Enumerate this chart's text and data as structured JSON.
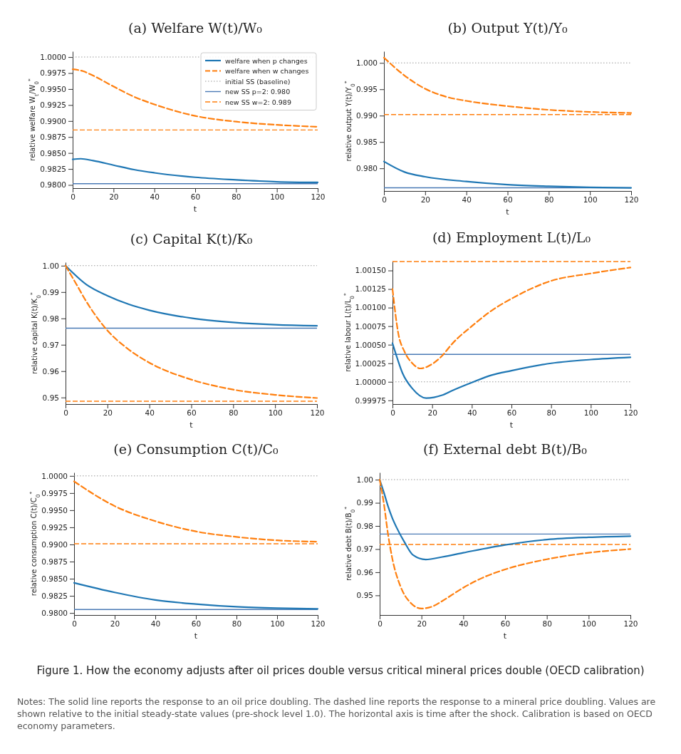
{
  "chart_data": [
    {
      "type": "line",
      "title": "(a) Welfare W(t)/W₀",
      "xlabel": "t",
      "ylabel": "relative welfare W$_{t}$/W$_{0}$$^{*}$",
      "xlim": [
        0,
        120
      ],
      "xticks": [
        0,
        20,
        40,
        60,
        80,
        100,
        120
      ],
      "ylim": [
        0.9795,
        1.0009
      ],
      "yticks": [
        {
          "value": 0.98,
          "label": "0.9800"
        },
        {
          "value": 0.9825,
          "label": "0.9825"
        },
        {
          "value": 0.985,
          "label": "0.9850"
        },
        {
          "value": 0.9875,
          "label": "0.9875"
        },
        {
          "value": 0.99,
          "label": "0.9900"
        },
        {
          "value": 0.9925,
          "label": "0.9925"
        },
        {
          "value": 0.995,
          "label": "0.9950"
        },
        {
          "value": 0.9975,
          "label": "0.9975"
        },
        {
          "value": 1,
          "label": "1.0000"
        }
      ],
      "legend": "top right",
      "series": [
        {
          "name": "welfare when p changes",
          "color": "#1f77b4",
          "line_style": "solid",
          "x": [
            0,
            4,
            10,
            20,
            30,
            40,
            60,
            80,
            100,
            120
          ],
          "values": [
            0.984,
            0.9841,
            0.9838,
            0.9831,
            0.9824,
            0.9819,
            0.9812,
            0.9808,
            0.9805,
            0.9804
          ]
        },
        {
          "name": "welfare when w changes",
          "color": "#ff7f0e",
          "line_style": "dashed",
          "x": [
            0,
            5,
            10,
            20,
            30,
            40,
            60,
            80,
            100,
            120
          ],
          "values": [
            0.9981,
            0.9978,
            0.9971,
            0.9954,
            0.9938,
            0.9926,
            0.9908,
            0.9899,
            0.9894,
            0.9891
          ]
        }
      ],
      "ref_lines": [
        {
          "axis": "y",
          "value": 1,
          "label": "initial SS (baseline)",
          "color": "#999999",
          "line_style": "dotted"
        },
        {
          "axis": "y",
          "value": 0.9802,
          "label": "new SS p=2: 0.980",
          "color": "#4a7ab5",
          "line_style": "solid"
        },
        {
          "axis": "y",
          "value": 0.9886,
          "label": "new SS w=2: 0.989",
          "color": "#ff7f0e",
          "line_style": "dashed"
        }
      ]
    },
    {
      "type": "line",
      "title": "(b) Output Y(t)/Y₀",
      "xlabel": "t",
      "ylabel": "relative output Y(t)/Y$_{0}$$^{*}$",
      "xlim": [
        0,
        120
      ],
      "xticks": [
        0,
        20,
        40,
        60,
        80,
        100,
        120
      ],
      "ylim": [
        0.9757,
        1.0022
      ],
      "yticks": [
        {
          "value": 0.98,
          "label": "0.980"
        },
        {
          "value": 0.985,
          "label": "0.985"
        },
        {
          "value": 0.99,
          "label": "0.990"
        },
        {
          "value": 0.995,
          "label": "0.995"
        },
        {
          "value": 1,
          "label": "1.000"
        }
      ],
      "series": [
        {
          "color": "#1f77b4",
          "line_style": "solid",
          "x": [
            0,
            10,
            20,
            40,
            60,
            80,
            100,
            120
          ],
          "values": [
            0.9813,
            0.9793,
            0.9784,
            0.9775,
            0.9769,
            0.9766,
            0.9764,
            0.9763
          ]
        },
        {
          "color": "#ff7f0e",
          "line_style": "dashed",
          "x": [
            0,
            10,
            20,
            30,
            40,
            60,
            80,
            100,
            120
          ],
          "values": [
            1.001,
            0.9976,
            0.9951,
            0.9936,
            0.9928,
            0.9918,
            0.9911,
            0.9907,
            0.9905
          ]
        }
      ],
      "ref_lines": [
        {
          "axis": "y",
          "value": 1,
          "color": "#999999",
          "line_style": "dotted"
        },
        {
          "axis": "y",
          "value": 0.9763,
          "color": "#4a7ab5",
          "line_style": "solid"
        },
        {
          "axis": "y",
          "value": 0.9902,
          "color": "#ff7f0e",
          "line_style": "dashed"
        }
      ]
    },
    {
      "type": "line",
      "title": "(c) Capital K(t)/K₀",
      "xlabel": "t",
      "ylabel": "relative capital K(t)/K$_{0}$$^{*}$",
      "xlim": [
        0,
        120
      ],
      "xticks": [
        0,
        20,
        40,
        60,
        80,
        100,
        120
      ],
      "ylim": [
        0.9475,
        1.0013
      ],
      "yticks": [
        0.95,
        0.96,
        0.97,
        0.98,
        0.99,
        {
          "value": 1,
          "label": "1.00"
        }
      ],
      "series": [
        {
          "color": "#1f77b4",
          "line_style": "solid",
          "x": [
            0,
            10,
            20,
            30,
            40,
            60,
            80,
            100,
            120
          ],
          "values": [
            1,
            0.9928,
            0.9886,
            0.9854,
            0.9831,
            0.9801,
            0.9785,
            0.9776,
            0.9772
          ]
        },
        {
          "color": "#ff7f0e",
          "line_style": "dashed",
          "x": [
            0,
            5,
            10,
            20,
            30,
            40,
            60,
            80,
            100,
            120
          ],
          "values": [
            1,
            0.9932,
            0.9863,
            0.9754,
            0.9683,
            0.9632,
            0.9568,
            0.953,
            0.951,
            0.9498
          ]
        }
      ],
      "ref_lines": [
        {
          "axis": "y",
          "value": 1,
          "color": "#999999",
          "line_style": "dotted"
        },
        {
          "axis": "y",
          "value": 0.9763,
          "color": "#4a7ab5",
          "line_style": "solid"
        },
        {
          "axis": "y",
          "value": 0.9486,
          "color": "#ff7f0e",
          "line_style": "dashed"
        }
      ]
    },
    {
      "type": "line",
      "title": "(d) Employment L(t)/L₀",
      "xlabel": "t",
      "ylabel": "relative labour L(t)/L$_{0}$$^{*}$",
      "xlim": [
        0,
        120
      ],
      "xticks": [
        0,
        20,
        40,
        60,
        80,
        100,
        120
      ],
      "ylim": [
        0.9997,
        1.00163
      ],
      "yticks": [
        0.99975,
        {
          "value": 1,
          "label": "1.00000"
        },
        1.00025,
        {
          "value": 1.0005,
          "label": "1.00050"
        },
        1.00075,
        {
          "value": 1.001,
          "label": "1.00100"
        },
        1.00125,
        {
          "value": 1.0015,
          "label": "1.00150"
        }
      ],
      "series": [
        {
          "color": "#1f77b4",
          "line_style": "solid",
          "x": [
            0,
            2,
            5,
            10,
            17,
            25,
            30,
            40,
            50,
            60,
            80,
            100,
            120
          ],
          "values": [
            1.00052,
            1.00035,
            1.00012,
            0.99991,
            0.99978,
            0.99982,
            0.99988,
            0.99999,
            1.00009,
            1.00015,
            1.00025,
            1.0003,
            1.00033
          ]
        },
        {
          "color": "#ff7f0e",
          "line_style": "dashed",
          "x": [
            0,
            3,
            6,
            10,
            14,
            20,
            25,
            30,
            40,
            50,
            60,
            80,
            100,
            120
          ],
          "values": [
            1.00125,
            1.00064,
            1.00041,
            1.00025,
            1.00018,
            1.00024,
            1.00035,
            1.00051,
            1.00075,
            1.00096,
            1.00112,
            1.00136,
            1.00146,
            1.00154
          ]
        }
      ],
      "ref_lines": [
        {
          "axis": "y",
          "value": 1,
          "color": "#999999",
          "line_style": "dotted"
        },
        {
          "axis": "y",
          "value": 1.00037,
          "color": "#4a7ab5",
          "line_style": "solid"
        },
        {
          "axis": "y",
          "value": 1.00162,
          "color": "#ff7f0e",
          "line_style": "dashed"
        }
      ]
    },
    {
      "type": "line",
      "title": "(e) Consumption C(t)/C₀",
      "xlabel": "t",
      "ylabel": "relative consumption C(t)/C$_{0}$$^{*}$",
      "xlim": [
        0,
        120
      ],
      "xticks": [
        0,
        20,
        40,
        60,
        80,
        100,
        120
      ],
      "ylim": [
        0.9797,
        1.0005
      ],
      "yticks": [
        {
          "value": 0.98,
          "label": "0.9800"
        },
        {
          "value": 0.9825,
          "label": "0.9825"
        },
        {
          "value": 0.985,
          "label": "0.9850"
        },
        {
          "value": 0.9875,
          "label": "0.9875"
        },
        {
          "value": 0.99,
          "label": "0.9900"
        },
        {
          "value": 0.9925,
          "label": "0.9925"
        },
        {
          "value": 0.995,
          "label": "0.9950"
        },
        {
          "value": 0.9975,
          "label": "0.9975"
        },
        {
          "value": 1,
          "label": "1.0000"
        }
      ],
      "series": [
        {
          "color": "#1f77b4",
          "line_style": "solid",
          "x": [
            0,
            20,
            40,
            60,
            80,
            100,
            120
          ],
          "values": [
            0.9844,
            0.983,
            0.9819,
            0.9813,
            0.9809,
            0.9807,
            0.9806
          ]
        },
        {
          "color": "#ff7f0e",
          "line_style": "dashed",
          "x": [
            0,
            20,
            40,
            60,
            80,
            100,
            120
          ],
          "values": [
            0.9992,
            0.9956,
            0.9934,
            0.9919,
            0.9911,
            0.9906,
            0.9904
          ]
        }
      ],
      "ref_lines": [
        {
          "axis": "y",
          "value": 1,
          "color": "#999999",
          "line_style": "dotted"
        },
        {
          "axis": "y",
          "value": 0.9805,
          "color": "#4a7ab5",
          "line_style": "solid"
        },
        {
          "axis": "y",
          "value": 0.9901,
          "color": "#ff7f0e",
          "line_style": "dashed"
        }
      ]
    },
    {
      "type": "line",
      "title": "(f) External debt B(t)/B₀",
      "xlabel": "t",
      "ylabel": "relative debt B(t)/B$_{0}$$^{*}$",
      "xlim": [
        0,
        120
      ],
      "xticks": [
        0,
        20,
        40,
        60,
        80,
        100,
        120
      ],
      "ylim": [
        0.9415,
        1.0031
      ],
      "yticks": [
        0.95,
        0.96,
        0.97,
        0.98,
        0.99,
        {
          "value": 1,
          "label": "1.00"
        }
      ],
      "series": [
        {
          "color": "#1f77b4",
          "line_style": "solid",
          "x": [
            0,
            2,
            4,
            6,
            8,
            12,
            16,
            22,
            30,
            40,
            60,
            80,
            100,
            120
          ],
          "values": [
            1,
            0.9945,
            0.9885,
            0.9835,
            0.9795,
            0.9728,
            0.9674,
            0.9655,
            0.9666,
            0.9684,
            0.9718,
            0.9741,
            0.9751,
            0.9756
          ]
        },
        {
          "color": "#ff7f0e",
          "line_style": "dashed",
          "x": [
            0,
            2,
            4,
            6,
            10,
            15,
            20,
            25,
            30,
            40,
            50,
            60,
            80,
            100,
            120
          ],
          "values": [
            1,
            0.9897,
            0.9764,
            0.9661,
            0.9538,
            0.9466,
            0.9443,
            0.9451,
            0.9476,
            0.9533,
            0.9579,
            0.9612,
            0.9656,
            0.9684,
            0.97
          ]
        }
      ],
      "ref_lines": [
        {
          "axis": "y",
          "value": 1,
          "color": "#999999",
          "line_style": "dotted"
        },
        {
          "axis": "y",
          "value": 0.9765,
          "color": "#4a7ab5",
          "line_style": "solid"
        },
        {
          "axis": "y",
          "value": 0.972,
          "color": "#ff7f0e",
          "line_style": "dashed"
        }
      ],
      "annotations": [
        "Figure 1. How the economy adjusts after oil prices double versus critical mineral prices double (OECD calibration)",
        "Notes: The solid line reports the response to an oil price doubling. The dashed line reports the response to a mineral price doubling. Values are shown relative to the initial steady-state values (pre-shock level 1.0). The horizontal axis is time after the shock. Calibration is based on OECD economy parameters."
      ]
    }
  ]
}
